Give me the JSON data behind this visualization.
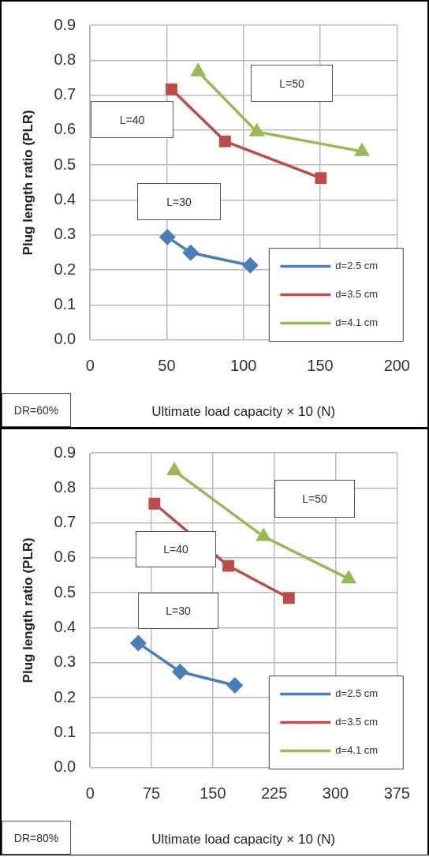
{
  "chart_data": [
    {
      "type": "line",
      "xlabel": "Ultimate load capacity × 10 (N)",
      "ylabel": "Plug length ratio (PLR)",
      "xlim": [
        0,
        200
      ],
      "xticks": [
        0,
        50,
        100,
        150,
        200
      ],
      "ylim": [
        0,
        0.9
      ],
      "yticks": [
        {
          "value": 0,
          "label": "0.0"
        },
        0.1,
        0.2,
        0.3,
        0.4,
        0.5,
        0.6,
        0.7,
        0.8,
        0.9
      ],
      "grid": true,
      "legend": "bottom right",
      "line_style": "solid",
      "series": [
        {
          "name": "d=2.5 cm",
          "color": "#4a7ebb",
          "marker": "diamond",
          "x": [
            50.4,
            65.6,
            104.4
          ],
          "values": [
            0.294,
            0.249,
            0.213
          ]
        },
        {
          "name": "d=3.5 cm",
          "color": "#be4b48",
          "marker": "square",
          "x": [
            53.1,
            88,
            150.4
          ],
          "values": [
            0.717,
            0.568,
            0.463
          ]
        },
        {
          "name": "d=4.1 cm",
          "color": "#98b954",
          "marker": "triangle",
          "x": [
            70.4,
            108.7,
            177.2
          ],
          "values": [
            0.767,
            0.595,
            0.539
          ]
        }
      ],
      "annotations": [
        "L=30",
        "L=40",
        "L=50",
        "DR=60%"
      ]
    },
    {
      "type": "line",
      "xlabel": "Ultimate load capacity × 10 (N)",
      "ylabel": "Plug length ratio (PLR)",
      "xlim": [
        0,
        375
      ],
      "xticks": [
        0,
        75,
        150,
        225,
        300,
        375
      ],
      "ylim": [
        0,
        0.9
      ],
      "yticks": [
        {
          "value": 0,
          "label": "0.0"
        },
        0.1,
        0.2,
        0.3,
        0.4,
        0.5,
        0.6,
        0.7,
        0.8,
        0.9
      ],
      "grid": true,
      "legend": "bottom right",
      "line_style": "solid",
      "series": [
        {
          "name": "d=2.5 cm",
          "color": "#4a7ebb",
          "marker": "diamond",
          "x": [
            59,
            110,
            177
          ],
          "values": [
            0.356,
            0.274,
            0.235
          ]
        },
        {
          "name": "d=3.5 cm",
          "color": "#be4b48",
          "marker": "square",
          "x": [
            78.7,
            169,
            243
          ],
          "values": [
            0.755,
            0.577,
            0.485
          ]
        },
        {
          "name": "d=4.1 cm",
          "color": "#98b954",
          "marker": "triangle",
          "x": [
            103,
            212,
            316
          ],
          "values": [
            0.849,
            0.661,
            0.54
          ]
        }
      ],
      "annotations": [
        "L=30",
        "L=40",
        "L=50",
        "DR=80%"
      ]
    }
  ]
}
